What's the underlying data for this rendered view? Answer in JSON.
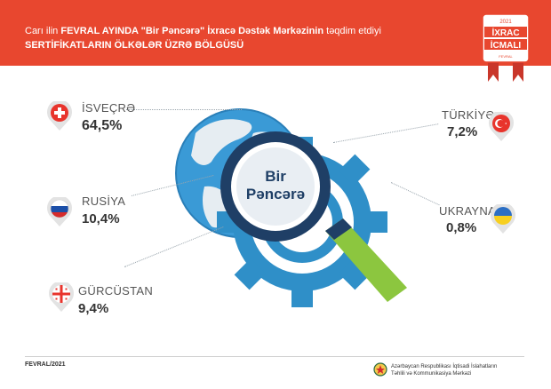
{
  "header": {
    "line1_pre": "Carı ilin ",
    "line1_bold1": "FEVRAL AYINDA \"Bir Pəncərə\" İxracə Dəstək Mərkəzinin",
    "line1_post": " təqdim etdiyi",
    "line2": "SERTİFİKATLARIN  ÖLKƏLƏR ÜZRƏ BÖLGÜSÜ"
  },
  "badge": {
    "year": "2021",
    "line1": "İXRAC",
    "line2": "İCMALI",
    "sub": "FEVRAL"
  },
  "center_graphic": {
    "lens_line1": "Bir",
    "lens_line2": "Pəncərə"
  },
  "countries": [
    {
      "name": "İSVEÇRƏ",
      "value": "64,5%",
      "flag": "swiss-flag-icon"
    },
    {
      "name": "RUSİYA",
      "value": "10,4%",
      "flag": "russia-flag-icon"
    },
    {
      "name": "GÜRCÜSTAN",
      "value": "9,4%",
      "flag": "georgia-flag-icon"
    },
    {
      "name": "TÜRKİYƏ",
      "value": "7,2%",
      "flag": "turkey-flag-icon"
    },
    {
      "name": "UKRAYNA",
      "value": "0,8%",
      "flag": "ukraine-flag-icon"
    }
  ],
  "footer": {
    "date": "FEVRAL/2021",
    "org_line1": "Azərbaycan Respublikası İqtisadi İslahatların",
    "org_line2": "Təhlili və Kommunikasiya Mərkəzi"
  },
  "colors": {
    "header_bg": "#e8472f",
    "gear": "#2f8fc8",
    "handle": "#8cc63f",
    "lens_ring": "#1f3f66"
  }
}
